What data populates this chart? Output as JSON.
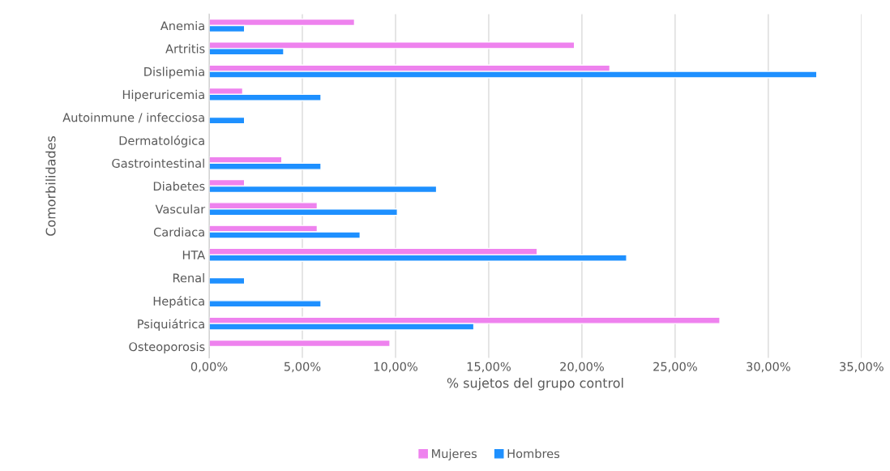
{
  "chart_data": {
    "type": "bar",
    "orientation": "horizontal",
    "ylabel": "Comorbilidades",
    "xlabel": "% sujetos del grupo control",
    "categories": [
      "Anemia",
      "Artritis",
      "Dislipemia",
      "Hiperuricemia",
      "Autoinmune / infecciosa",
      "Dermatológica",
      "Gastrointestinal",
      "Diabetes",
      "Vascular",
      "Cardiaca",
      "HTA",
      "Renal",
      "Hepática",
      "Psiquiátrica",
      "Osteoporosis"
    ],
    "series": [
      {
        "name": "Mujeres",
        "color": "#ee82ee",
        "values": [
          7.8,
          19.6,
          21.5,
          1.8,
          null,
          null,
          3.9,
          1.9,
          5.8,
          5.8,
          17.6,
          null,
          null,
          27.4,
          9.7
        ]
      },
      {
        "name": "Hombres",
        "color": "#1e90ff",
        "values": [
          1.9,
          4.0,
          32.6,
          6.0,
          1.9,
          null,
          6.0,
          12.2,
          10.1,
          8.1,
          22.4,
          1.9,
          6.0,
          14.2,
          null
        ]
      }
    ],
    "xlim": [
      0,
      35
    ],
    "xticks": [
      {
        "value": 0,
        "label": "0,00%"
      },
      {
        "value": 5,
        "label": "5,00%"
      },
      {
        "value": 10,
        "label": "10,00%"
      },
      {
        "value": 15,
        "label": "15,00%"
      },
      {
        "value": 20,
        "label": "20,00%"
      },
      {
        "value": 25,
        "label": "25,00%"
      },
      {
        "value": 30,
        "label": "30,00%"
      },
      {
        "value": 35,
        "label": "35,00%"
      }
    ],
    "grid": "x",
    "legend": "bottom"
  }
}
